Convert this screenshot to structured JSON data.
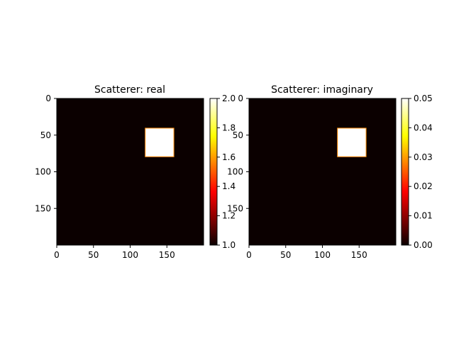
{
  "chart_data": [
    {
      "type": "heatmap",
      "title": "Scatterer: real",
      "grid": false,
      "image": {
        "shape": [
          200,
          200
        ],
        "background_value": 1.0,
        "background_color": "#0b0000",
        "block": {
          "x_range": [
            120,
            160
          ],
          "y_range": [
            40,
            80
          ],
          "value": 2.0,
          "color": "#ffffff",
          "edge_color": "#ff8c00"
        }
      },
      "xaxis": {
        "ticks": [
          0,
          50,
          100,
          150
        ],
        "range": [
          0,
          200
        ]
      },
      "yaxis": {
        "ticks": [
          0,
          50,
          100,
          150
        ],
        "range": [
          0,
          200
        ],
        "inverted": true
      },
      "colorbar": {
        "cmap": "hot",
        "range": [
          1.0,
          2.0
        ],
        "ticks": [
          1.0,
          1.2,
          1.4,
          1.6,
          1.8,
          2.0
        ],
        "tick_labels": [
          "1.0",
          "1.2",
          "1.4",
          "1.6",
          "1.8",
          "2.0"
        ]
      }
    },
    {
      "type": "heatmap",
      "title": "Scatterer: imaginary",
      "grid": false,
      "image": {
        "shape": [
          200,
          200
        ],
        "background_value": 0.0,
        "background_color": "#0b0000",
        "block": {
          "x_range": [
            120,
            160
          ],
          "y_range": [
            40,
            80
          ],
          "value": 0.05,
          "color": "#ffffff",
          "edge_color": "#ff8c00"
        }
      },
      "xaxis": {
        "ticks": [
          0,
          50,
          100,
          150
        ],
        "range": [
          0,
          200
        ]
      },
      "yaxis": {
        "ticks": [
          0,
          50,
          100,
          150
        ],
        "range": [
          0,
          200
        ],
        "inverted": true
      },
      "colorbar": {
        "cmap": "hot",
        "range": [
          0.0,
          0.05
        ],
        "ticks": [
          0.0,
          0.01,
          0.02,
          0.03,
          0.04,
          0.05
        ],
        "tick_labels": [
          "0.00",
          "0.01",
          "0.02",
          "0.03",
          "0.04",
          "0.05"
        ]
      }
    }
  ]
}
